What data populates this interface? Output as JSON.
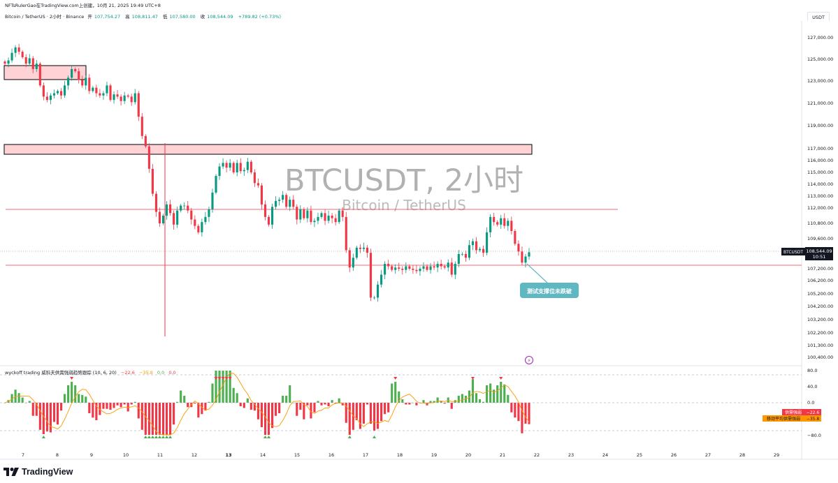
{
  "header": {
    "caption": "NFTsRulerGao在TradingView.com上创建，10月 21, 2025 19:49 UTC+8",
    "symbol_title": "Bitcoin / TetherUS · 2小时 · Binance",
    "ohlc": [
      {
        "label": "开",
        "value": "107,754.27"
      },
      {
        "label": "高",
        "value": "108,811.47"
      },
      {
        "label": "低",
        "value": "107,580.00"
      },
      {
        "label": "收",
        "value": "108,544.09"
      }
    ],
    "change": "+789.82 (+0.73%)"
  },
  "currency_button": "USDT",
  "watermark": {
    "title": "BTCUSDT, 2小时",
    "subtitle": "Bitcoin / TetherUS"
  },
  "price_tag": {
    "symbol": "BTCUSDT",
    "price": "108,544.09",
    "countdown": "10:51"
  },
  "annotation": {
    "text": "测试支撑位未跌破"
  },
  "indicator": {
    "name": "wyckoff trading 威科夫供需强弱趋势跟踪 (10, 6, 20)",
    "values": [
      "−22.6",
      "−35.8",
      "0.0",
      "0.0"
    ],
    "axis_labels": [
      "80.0",
      "40.0",
      "0.0",
      "−80.0"
    ],
    "tag_1": {
      "label": "供需强弱",
      "value": "−22.6"
    },
    "tag_2": {
      "label": "移动平均供需强弱",
      "value": "−35.8"
    }
  },
  "footer": {
    "brand": "TradingView"
  },
  "colors": {
    "up": "#089981",
    "down": "#f23645",
    "hist_up": "#4caf50",
    "hist_down": "#f23645",
    "zone_fill": "#ffcdd2",
    "annotation_bg": "#5fb7c2"
  },
  "chart_data": {
    "type": "candlestick",
    "interval": "2h",
    "x_tick_labels": [
      "7",
      "8",
      "9",
      "10",
      "11",
      "12",
      "13",
      "14",
      "15",
      "16",
      "17",
      "18",
      "19",
      "20",
      "21",
      "22",
      "23",
      "24",
      "25",
      "26",
      "27",
      "28",
      "29"
    ],
    "y_tick_labels": [
      "127,000.00",
      "125,000.00",
      "123,000.00",
      "121,000.00",
      "119,000.00",
      "117,000.00",
      "116,000.00",
      "115,000.00",
      "114,000.00",
      "113,000.00",
      "112,000.00",
      "110,800.00",
      "109,600.00",
      "108,400.00",
      "107,200.00",
      "106,200.00",
      "105,200.00",
      "104,200.00",
      "103,200.00",
      "102,200.00",
      "101,300.00",
      "100,400.00"
    ],
    "last_price": 108544.09,
    "resistance_zones": [
      [
        124450,
        125450
      ],
      [
        116700,
        117400
      ]
    ],
    "horizontal_lines": [
      111950,
      107330
    ],
    "candle_closes": [
      124600,
      124900,
      125600,
      126100,
      125700,
      125200,
      124600,
      125100,
      124100,
      124600,
      122600,
      121600,
      121300,
      121700,
      121900,
      122100,
      121700,
      122600,
      123300,
      124100,
      123900,
      123100,
      122600,
      123300,
      122100,
      122400,
      121900,
      121700,
      121900,
      122600,
      121300,
      121800,
      121600,
      121200,
      121700,
      121600,
      121100,
      121900,
      119800,
      118100,
      117200,
      115300,
      113200,
      111700,
      110800,
      111400,
      112300,
      111600,
      110700,
      111800,
      112200,
      112200,
      111800,
      111100,
      110600,
      110100,
      110900,
      111300,
      111900,
      113300,
      114700,
      115500,
      115800,
      115400,
      115800,
      115000,
      115800,
      115100,
      115200,
      115900,
      115000,
      114100,
      113900,
      112300,
      111300,
      110700,
      112100,
      112600,
      112700,
      113100,
      112100,
      112700,
      112100,
      111100,
      111900,
      111200,
      111800,
      110900,
      111000,
      111300,
      111600,
      111000,
      111400,
      111200,
      110900,
      111800,
      111300,
      108700,
      107300,
      108100,
      108900,
      108800,
      108900,
      108500,
      104900,
      104900,
      105900,
      106700,
      107600,
      107400,
      107100,
      107300,
      107200,
      107100,
      107400,
      107200,
      107100,
      107000,
      107200,
      107400,
      107100,
      107400,
      107300,
      107600,
      107400,
      107300,
      107700,
      106700,
      107600,
      108400,
      108400,
      108100,
      109100,
      109400,
      108700,
      108800,
      108500,
      110100,
      111300,
      110900,
      110700,
      111200,
      110600,
      111000,
      110200,
      109200,
      108600,
      107700,
      108200,
      108544
    ]
  }
}
